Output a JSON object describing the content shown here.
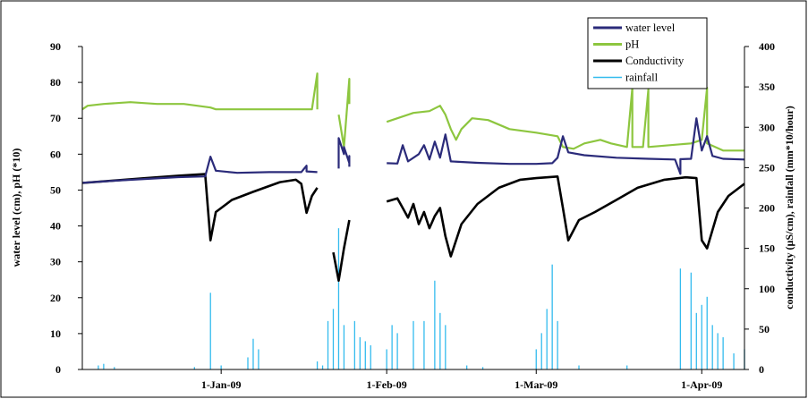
{
  "chart_data": {
    "type": "line",
    "title": "",
    "ylabel_left": "water level (cm), pH (*10)",
    "ylabel_right": "conductivity (µS/cm), rainfall (mm*10/hour)",
    "y_left": {
      "min": 0,
      "max": 90,
      "ticks": [
        "0",
        "10",
        "20",
        "30",
        "40",
        "50",
        "60",
        "70",
        "80",
        "90"
      ]
    },
    "y_right": {
      "min": 0,
      "max": 400,
      "ticks": [
        "0",
        "50",
        "100",
        "150",
        "200",
        "250",
        "300",
        "350",
        "400"
      ]
    },
    "x_axis": {
      "start": "2008-12-06",
      "end": "2009-04-09",
      "tick_labels": [
        "1-Jan-09",
        "1-Feb-09",
        "1-Mar-09",
        "1-Apr-09"
      ],
      "tick_dates": [
        "2009-01-01",
        "2009-02-01",
        "2009-03-01",
        "2009-04-01"
      ]
    },
    "grid": false,
    "legend": {
      "position": "top-right"
    },
    "series": [
      {
        "name": "water level",
        "axis": "left",
        "color": "#2b2b7a",
        "points": [
          [
            "2008-12-06",
            52
          ],
          [
            "2008-12-12",
            52.6
          ],
          [
            "2008-12-18",
            53.1
          ],
          [
            "2008-12-24",
            53.6
          ],
          [
            "2008-12-29",
            53.8
          ],
          [
            "2008-12-30",
            59.3
          ],
          [
            "2008-12-31",
            55.4
          ],
          [
            "2009-01-04",
            54.8
          ],
          [
            "2009-01-10",
            55
          ],
          [
            "2009-01-16",
            55
          ],
          [
            "2009-01-17",
            56.8
          ],
          [
            "2009-01-17",
            55.2
          ],
          [
            "2009-01-19",
            55
          ],
          null,
          [
            "2009-01-23",
            56
          ],
          [
            "2009-01-23",
            64.5
          ],
          [
            "2009-01-24",
            60
          ],
          [
            "2009-01-24",
            62
          ],
          [
            "2009-01-25",
            57.5
          ],
          [
            "2009-01-25",
            59.5
          ],
          [
            "2009-01-25",
            56.5
          ],
          null,
          [
            "2009-02-01",
            57.5
          ],
          [
            "2009-02-03",
            57.4
          ],
          [
            "2009-02-04",
            62.5
          ],
          [
            "2009-02-05",
            58
          ],
          [
            "2009-02-07",
            60
          ],
          [
            "2009-02-08",
            62.5
          ],
          [
            "2009-02-09",
            58.5
          ],
          [
            "2009-02-10",
            63.5
          ],
          [
            "2009-02-11",
            59
          ],
          [
            "2009-02-12",
            65.5
          ],
          [
            "2009-02-13",
            58
          ],
          [
            "2009-02-18",
            57.6
          ],
          [
            "2009-02-24",
            57.3
          ],
          [
            "2009-03-01",
            57.3
          ],
          [
            "2009-03-04",
            57.5
          ],
          [
            "2009-03-05",
            59
          ],
          [
            "2009-03-06",
            65
          ],
          [
            "2009-03-07",
            60.5
          ],
          [
            "2009-03-10",
            59.7
          ],
          [
            "2009-03-16",
            59
          ],
          [
            "2009-03-22",
            58.7
          ],
          [
            "2009-03-27",
            58.5
          ],
          [
            "2009-03-28",
            54.5
          ],
          [
            "2009-03-28",
            58.6
          ],
          [
            "2009-03-30",
            58.7
          ],
          [
            "2009-03-31",
            70
          ],
          [
            "2009-04-01",
            61
          ],
          [
            "2009-04-02",
            65
          ],
          [
            "2009-04-03",
            59.5
          ],
          [
            "2009-04-05",
            58.7
          ],
          [
            "2009-04-09",
            58.5
          ]
        ]
      },
      {
        "name": "pH",
        "axis": "left",
        "color": "#8dc63f",
        "points": [
          [
            "2008-12-06",
            72.5
          ],
          [
            "2008-12-07",
            73.5
          ],
          [
            "2008-12-10",
            74
          ],
          [
            "2008-12-15",
            74.5
          ],
          [
            "2008-12-20",
            74
          ],
          [
            "2008-12-25",
            74
          ],
          [
            "2008-12-30",
            73
          ],
          [
            "2008-12-31",
            72.5
          ],
          [
            "2009-01-05",
            72.5
          ],
          [
            "2009-01-10",
            72.5
          ],
          [
            "2009-01-15",
            72.5
          ],
          [
            "2009-01-18",
            72.5
          ],
          [
            "2009-01-19",
            82.5
          ],
          [
            "2009-01-19",
            72.5
          ],
          null,
          [
            "2009-01-23",
            71
          ],
          [
            "2009-01-24",
            62
          ],
          [
            "2009-01-25",
            81
          ],
          [
            "2009-01-25",
            74
          ],
          null,
          [
            "2009-02-01",
            69
          ],
          [
            "2009-02-03",
            70
          ],
          [
            "2009-02-06",
            71.5
          ],
          [
            "2009-02-09",
            72
          ],
          [
            "2009-02-11",
            73.5
          ],
          [
            "2009-02-12",
            71
          ],
          [
            "2009-02-13",
            67
          ],
          [
            "2009-02-14",
            64
          ],
          [
            "2009-02-15",
            67
          ],
          [
            "2009-02-17",
            70
          ],
          [
            "2009-02-20",
            69.5
          ],
          [
            "2009-02-24",
            67
          ],
          [
            "2009-03-01",
            66
          ],
          [
            "2009-03-05",
            65
          ],
          [
            "2009-03-06",
            62
          ],
          [
            "2009-03-08",
            61.5
          ],
          [
            "2009-03-10",
            63
          ],
          [
            "2009-03-13",
            64
          ],
          [
            "2009-03-15",
            63
          ],
          [
            "2009-03-18",
            62
          ],
          [
            "2009-03-19",
            78.5
          ],
          [
            "2009-03-19",
            62
          ],
          [
            "2009-03-21",
            62
          ],
          [
            "2009-03-22",
            78
          ],
          [
            "2009-03-22",
            62
          ],
          [
            "2009-03-30",
            63
          ],
          [
            "2009-04-01",
            64
          ],
          [
            "2009-04-02",
            78.5
          ],
          [
            "2009-04-02",
            63
          ],
          [
            "2009-04-05",
            61
          ],
          [
            "2009-04-09",
            61
          ]
        ]
      },
      {
        "name": "Conductivity",
        "axis": "right",
        "color": "#000000",
        "points": [
          [
            "2008-12-06",
            231
          ],
          [
            "2008-12-12",
            234
          ],
          [
            "2008-12-18",
            237
          ],
          [
            "2008-12-24",
            240
          ],
          [
            "2008-12-29",
            242
          ],
          [
            "2008-12-30",
            160
          ],
          [
            "2008-12-31",
            195
          ],
          [
            "2009-01-03",
            210
          ],
          [
            "2009-01-07",
            220
          ],
          [
            "2009-01-12",
            232
          ],
          [
            "2009-01-15",
            235
          ],
          [
            "2009-01-16",
            230
          ],
          [
            "2009-01-17",
            194
          ],
          [
            "2009-01-18",
            215
          ],
          [
            "2009-01-19",
            225
          ],
          null,
          [
            "2009-01-22",
            145
          ],
          [
            "2009-01-23",
            110
          ],
          [
            "2009-01-24",
            150
          ],
          [
            "2009-01-25",
            185
          ],
          null,
          [
            "2009-02-01",
            208
          ],
          [
            "2009-02-03",
            212
          ],
          [
            "2009-02-04",
            200
          ],
          [
            "2009-02-05",
            188
          ],
          [
            "2009-02-06",
            205
          ],
          [
            "2009-02-07",
            180
          ],
          [
            "2009-02-08",
            195
          ],
          [
            "2009-02-09",
            175
          ],
          [
            "2009-02-10",
            190
          ],
          [
            "2009-02-11",
            200
          ],
          [
            "2009-02-12",
            165
          ],
          [
            "2009-02-13",
            140
          ],
          [
            "2009-02-15",
            180
          ],
          [
            "2009-02-18",
            205
          ],
          [
            "2009-02-22",
            225
          ],
          [
            "2009-02-26",
            235
          ],
          [
            "2009-03-01",
            237
          ],
          [
            "2009-03-05",
            239
          ],
          [
            "2009-03-06",
            200
          ],
          [
            "2009-03-07",
            160
          ],
          [
            "2009-03-09",
            185
          ],
          [
            "2009-03-12",
            195
          ],
          [
            "2009-03-16",
            210
          ],
          [
            "2009-03-20",
            225
          ],
          [
            "2009-03-25",
            235
          ],
          [
            "2009-03-29",
            238
          ],
          [
            "2009-03-31",
            237
          ],
          [
            "2009-04-01",
            160
          ],
          [
            "2009-04-02",
            150
          ],
          [
            "2009-04-04",
            195
          ],
          [
            "2009-04-06",
            215
          ],
          [
            "2009-04-09",
            230
          ]
        ]
      },
      {
        "name": "rainfall",
        "axis": "right",
        "color": "#33bbee",
        "bars": [
          [
            "2008-12-09",
            5
          ],
          [
            "2008-12-10",
            7
          ],
          [
            "2008-12-12",
            3
          ],
          [
            "2008-12-27",
            3
          ],
          [
            "2008-12-30",
            95
          ],
          [
            "2009-01-01",
            5
          ],
          [
            "2009-01-06",
            15
          ],
          [
            "2009-01-07",
            38
          ],
          [
            "2009-01-08",
            25
          ],
          [
            "2009-01-19",
            10
          ],
          [
            "2009-01-20",
            5
          ],
          [
            "2009-01-21",
            60
          ],
          [
            "2009-01-22",
            75
          ],
          [
            "2009-01-23",
            175
          ],
          [
            "2009-01-24",
            55
          ],
          [
            "2009-01-26",
            60
          ],
          [
            "2009-01-27",
            40
          ],
          [
            "2009-01-28",
            35
          ],
          [
            "2009-01-29",
            30
          ],
          [
            "2009-02-01",
            25
          ],
          [
            "2009-02-02",
            55
          ],
          [
            "2009-02-03",
            45
          ],
          [
            "2009-02-06",
            60
          ],
          [
            "2009-02-08",
            60
          ],
          [
            "2009-02-10",
            110
          ],
          [
            "2009-02-11",
            70
          ],
          [
            "2009-02-12",
            55
          ],
          [
            "2009-02-16",
            5
          ],
          [
            "2009-02-19",
            3
          ],
          [
            "2009-03-01",
            25
          ],
          [
            "2009-03-02",
            45
          ],
          [
            "2009-03-03",
            75
          ],
          [
            "2009-03-04",
            130
          ],
          [
            "2009-03-05",
            60
          ],
          [
            "2009-03-09",
            5
          ],
          [
            "2009-03-18",
            5
          ],
          [
            "2009-03-28",
            125
          ],
          [
            "2009-03-30",
            120
          ],
          [
            "2009-03-31",
            70
          ],
          [
            "2009-04-01",
            80
          ],
          [
            "2009-04-02",
            90
          ],
          [
            "2009-04-03",
            55
          ],
          [
            "2009-04-04",
            45
          ],
          [
            "2009-04-05",
            40
          ],
          [
            "2009-04-07",
            20
          ],
          [
            "2009-04-09",
            25
          ]
        ]
      }
    ]
  }
}
